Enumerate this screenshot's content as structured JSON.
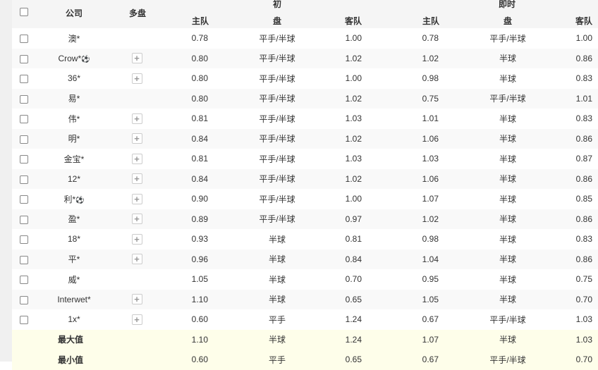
{
  "header": {
    "company": "公司",
    "multi": "多盘",
    "initial": "初",
    "live": "即时",
    "home": "主队",
    "line": "盘",
    "away": "客队"
  },
  "rows": [
    {
      "company": "澳*",
      "ball": false,
      "plus": false,
      "ih": "0.78",
      "il": "平手/半球",
      "ia": "1.00",
      "lh": "0.78",
      "ll": "平手/半球",
      "la": "1.00"
    },
    {
      "company": "Crow*",
      "ball": true,
      "plus": true,
      "ih": "0.80",
      "il": "平手/半球",
      "ia": "1.02",
      "lh": "1.02",
      "ll": "半球",
      "la": "0.86"
    },
    {
      "company": "36*",
      "ball": false,
      "plus": true,
      "ih": "0.80",
      "il": "平手/半球",
      "ia": "1.00",
      "lh": "0.98",
      "ll": "半球",
      "la": "0.83"
    },
    {
      "company": "易*",
      "ball": false,
      "plus": false,
      "ih": "0.80",
      "il": "平手/半球",
      "ia": "1.02",
      "lh": "0.75",
      "ll": "平手/半球",
      "la": "1.01"
    },
    {
      "company": "伟*",
      "ball": false,
      "plus": true,
      "ih": "0.81",
      "il": "平手/半球",
      "ia": "1.03",
      "lh": "1.01",
      "ll": "半球",
      "la": "0.83"
    },
    {
      "company": "明*",
      "ball": false,
      "plus": true,
      "ih": "0.84",
      "il": "平手/半球",
      "ia": "1.02",
      "lh": "1.06",
      "ll": "半球",
      "la": "0.86"
    },
    {
      "company": "金宝*",
      "ball": false,
      "plus": true,
      "ih": "0.81",
      "il": "平手/半球",
      "ia": "1.03",
      "lh": "1.03",
      "ll": "半球",
      "la": "0.87"
    },
    {
      "company": "12*",
      "ball": false,
      "plus": true,
      "ih": "0.84",
      "il": "平手/半球",
      "ia": "1.02",
      "lh": "1.06",
      "ll": "半球",
      "la": "0.86"
    },
    {
      "company": "利*",
      "ball": true,
      "plus": true,
      "ih": "0.90",
      "il": "平手/半球",
      "ia": "1.00",
      "lh": "1.07",
      "ll": "半球",
      "la": "0.85"
    },
    {
      "company": "盈*",
      "ball": false,
      "plus": true,
      "ih": "0.89",
      "il": "平手/半球",
      "ia": "0.97",
      "lh": "1.02",
      "ll": "半球",
      "la": "0.86"
    },
    {
      "company": "18*",
      "ball": false,
      "plus": true,
      "ih": "0.93",
      "il": "半球",
      "ia": "0.81",
      "lh": "0.98",
      "ll": "半球",
      "la": "0.83"
    },
    {
      "company": "平*",
      "ball": false,
      "plus": true,
      "ih": "0.96",
      "il": "半球",
      "ia": "0.84",
      "lh": "1.04",
      "ll": "半球",
      "la": "0.86"
    },
    {
      "company": "威*",
      "ball": false,
      "plus": false,
      "ih": "1.05",
      "il": "半球",
      "ia": "0.70",
      "lh": "0.95",
      "ll": "半球",
      "la": "0.75"
    },
    {
      "company": "Interwet*",
      "ball": false,
      "plus": true,
      "ih": "1.10",
      "il": "半球",
      "ia": "0.65",
      "lh": "1.05",
      "ll": "半球",
      "la": "0.70"
    },
    {
      "company": "1x*",
      "ball": false,
      "plus": true,
      "ih": "0.60",
      "il": "平手",
      "ia": "1.24",
      "lh": "0.67",
      "ll": "平手/半球",
      "la": "1.03"
    }
  ],
  "summary": [
    {
      "label": "最大值",
      "ih": "1.10",
      "il": "半球",
      "ia": "1.24",
      "lh": "1.07",
      "ll": "半球",
      "la": "1.03"
    },
    {
      "label": "最小值",
      "ih": "0.60",
      "il": "平手",
      "ia": "0.65",
      "lh": "0.67",
      "ll": "平手/半球",
      "la": "0.70"
    }
  ],
  "icons": {
    "ball": "soccer-ball-icon",
    "plus": "plus-icon"
  }
}
